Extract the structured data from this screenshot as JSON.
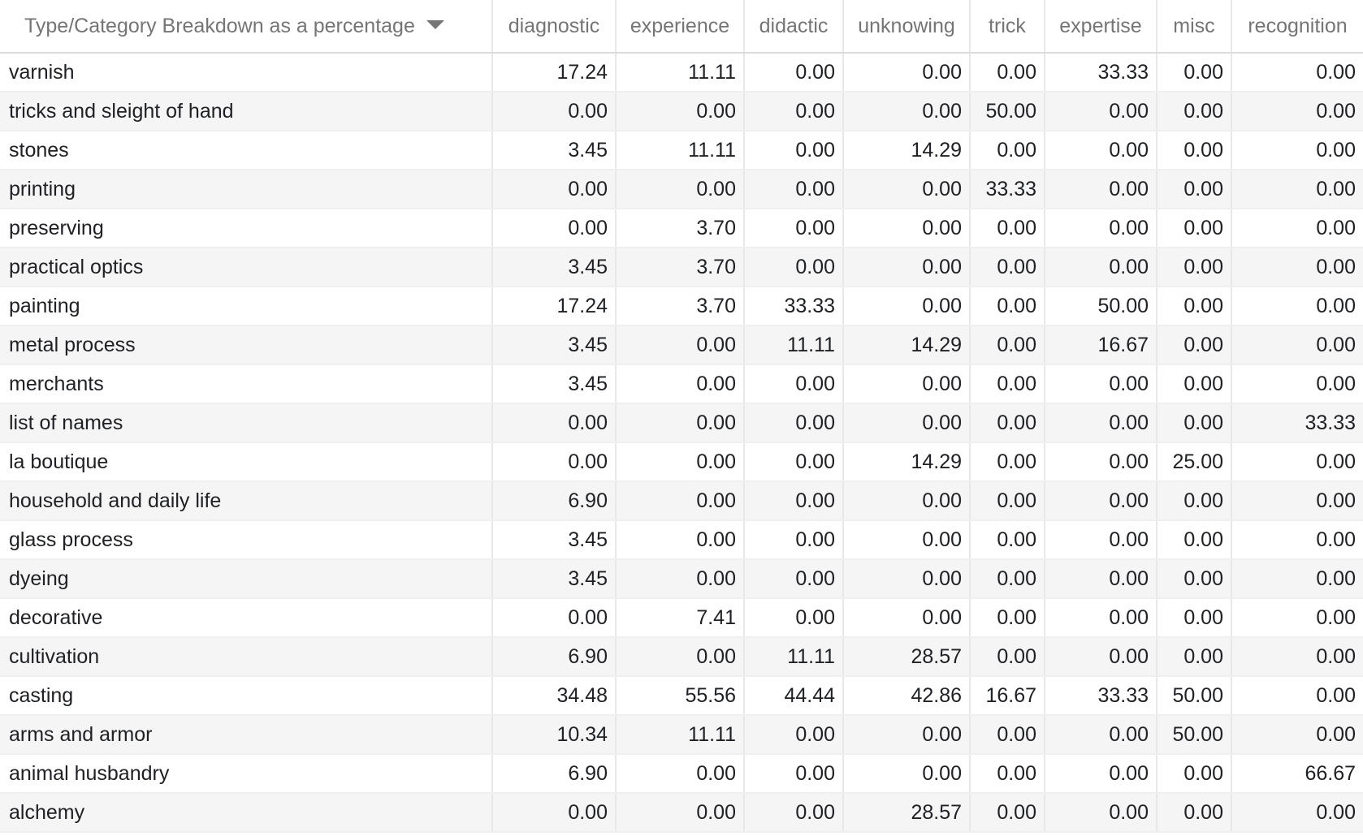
{
  "table": {
    "header": {
      "label": "Type/Category Breakdown as a percentage",
      "columns": [
        "diagnostic",
        "experience",
        "didactic",
        "unknowing",
        "trick",
        "expertise",
        "misc",
        "recognition"
      ]
    },
    "rows": [
      {
        "label": "varnish",
        "values": [
          "17.24",
          "11.11",
          "0.00",
          "0.00",
          "0.00",
          "33.33",
          "0.00",
          "0.00"
        ]
      },
      {
        "label": "tricks and sleight of hand",
        "values": [
          "0.00",
          "0.00",
          "0.00",
          "0.00",
          "50.00",
          "0.00",
          "0.00",
          "0.00"
        ]
      },
      {
        "label": "stones",
        "values": [
          "3.45",
          "11.11",
          "0.00",
          "14.29",
          "0.00",
          "0.00",
          "0.00",
          "0.00"
        ]
      },
      {
        "label": "printing",
        "values": [
          "0.00",
          "0.00",
          "0.00",
          "0.00",
          "33.33",
          "0.00",
          "0.00",
          "0.00"
        ]
      },
      {
        "label": "preserving",
        "values": [
          "0.00",
          "3.70",
          "0.00",
          "0.00",
          "0.00",
          "0.00",
          "0.00",
          "0.00"
        ]
      },
      {
        "label": "practical optics",
        "values": [
          "3.45",
          "3.70",
          "0.00",
          "0.00",
          "0.00",
          "0.00",
          "0.00",
          "0.00"
        ]
      },
      {
        "label": "painting",
        "values": [
          "17.24",
          "3.70",
          "33.33",
          "0.00",
          "0.00",
          "50.00",
          "0.00",
          "0.00"
        ]
      },
      {
        "label": "metal process",
        "values": [
          "3.45",
          "0.00",
          "11.11",
          "14.29",
          "0.00",
          "16.67",
          "0.00",
          "0.00"
        ]
      },
      {
        "label": "merchants",
        "values": [
          "3.45",
          "0.00",
          "0.00",
          "0.00",
          "0.00",
          "0.00",
          "0.00",
          "0.00"
        ]
      },
      {
        "label": "list of names",
        "values": [
          "0.00",
          "0.00",
          "0.00",
          "0.00",
          "0.00",
          "0.00",
          "0.00",
          "33.33"
        ]
      },
      {
        "label": "la boutique",
        "values": [
          "0.00",
          "0.00",
          "0.00",
          "14.29",
          "0.00",
          "0.00",
          "25.00",
          "0.00"
        ]
      },
      {
        "label": "household and daily life",
        "values": [
          "6.90",
          "0.00",
          "0.00",
          "0.00",
          "0.00",
          "0.00",
          "0.00",
          "0.00"
        ]
      },
      {
        "label": "glass process",
        "values": [
          "3.45",
          "0.00",
          "0.00",
          "0.00",
          "0.00",
          "0.00",
          "0.00",
          "0.00"
        ]
      },
      {
        "label": "dyeing",
        "values": [
          "3.45",
          "0.00",
          "0.00",
          "0.00",
          "0.00",
          "0.00",
          "0.00",
          "0.00"
        ]
      },
      {
        "label": "decorative",
        "values": [
          "0.00",
          "7.41",
          "0.00",
          "0.00",
          "0.00",
          "0.00",
          "0.00",
          "0.00"
        ]
      },
      {
        "label": "cultivation",
        "values": [
          "6.90",
          "0.00",
          "11.11",
          "28.57",
          "0.00",
          "0.00",
          "0.00",
          "0.00"
        ]
      },
      {
        "label": "casting",
        "values": [
          "34.48",
          "55.56",
          "44.44",
          "42.86",
          "16.67",
          "33.33",
          "50.00",
          "0.00"
        ]
      },
      {
        "label": "arms and armor",
        "values": [
          "10.34",
          "11.11",
          "0.00",
          "0.00",
          "0.00",
          "0.00",
          "50.00",
          "0.00"
        ]
      },
      {
        "label": "animal husbandry",
        "values": [
          "6.90",
          "0.00",
          "0.00",
          "0.00",
          "0.00",
          "0.00",
          "0.00",
          "66.67"
        ]
      },
      {
        "label": "alchemy",
        "values": [
          "0.00",
          "0.00",
          "0.00",
          "28.57",
          "0.00",
          "0.00",
          "0.00",
          "0.00"
        ]
      }
    ],
    "icons": {
      "sort": "sort-descending-arrow-icon"
    },
    "colors": {
      "header_text": "#757575",
      "cell_text": "#202124",
      "stripe": "#f5f5f5",
      "grid": "#e8e8e8"
    }
  }
}
